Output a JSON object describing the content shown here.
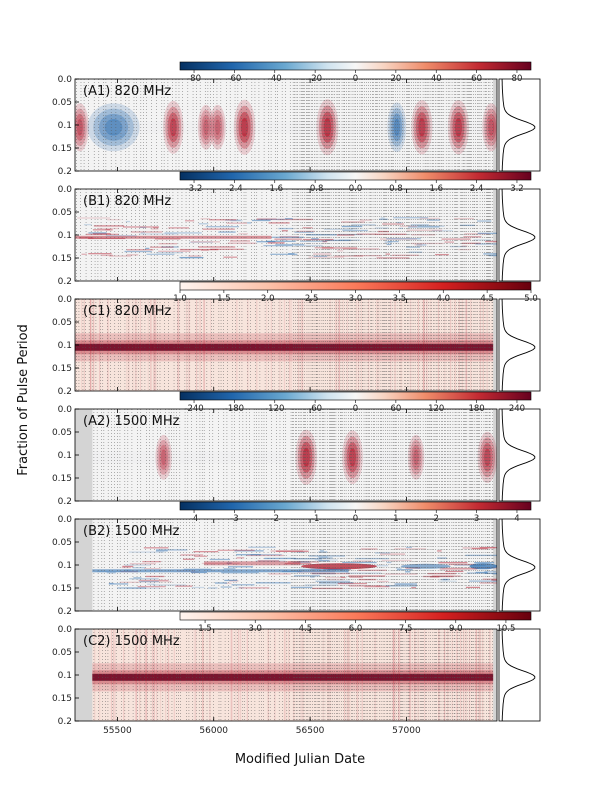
{
  "chart_data": {
    "type": "heatmap",
    "xlabel": "Modified Julian Date",
    "ylabel": "Fraction of Pulse Period",
    "xlim": [
      55280,
      57470
    ],
    "x_ticks": [
      55500,
      56000,
      56500,
      57000
    ],
    "y_ticks": [
      "0.0",
      "0.05",
      "0.1",
      "0.15",
      "0.2"
    ],
    "pulse_phase_peak": 0.105,
    "panels": [
      {
        "label": "(A1) 820 MHz",
        "colormap": "RdBu_r",
        "colorbar_ticks": [
          "-80",
          "-60",
          "-40",
          "-20",
          "0",
          "20",
          "40",
          "60",
          "80"
        ],
        "data_start_mjd": 55280,
        "data_end_mjd": 57450,
        "features": [
          {
            "mjd": 55305,
            "sign": 1,
            "strength": 0.5
          },
          {
            "mjd": 55480,
            "sign": -1,
            "strength": 0.5
          },
          {
            "mjd": 55790,
            "sign": 1,
            "strength": 0.8
          },
          {
            "mjd": 55960,
            "sign": 1,
            "strength": 0.3
          },
          {
            "mjd": 56020,
            "sign": 1,
            "strength": 0.3
          },
          {
            "mjd": 56160,
            "sign": 1,
            "strength": 0.95
          },
          {
            "mjd": 56590,
            "sign": 1,
            "strength": 1.0
          },
          {
            "mjd": 56950,
            "sign": -1,
            "strength": 0.6
          },
          {
            "mjd": 57080,
            "sign": 1,
            "strength": 0.9
          },
          {
            "mjd": 57270,
            "sign": 1,
            "strength": 0.9
          },
          {
            "mjd": 57440,
            "sign": 1,
            "strength": 0.5
          }
        ]
      },
      {
        "label": "(B1) 820 MHz",
        "colormap": "RdBu_r",
        "colorbar_ticks": [
          "-3.2",
          "-2.4",
          "-1.6",
          "-0.8",
          "0.0",
          "0.8",
          "1.6",
          "2.4",
          "3.2"
        ],
        "data_start_mjd": 55280,
        "data_end_mjd": 57450
      },
      {
        "label": "(C1) 820 MHz",
        "colormap": "Reds",
        "colorbar_ticks": [
          "1.0",
          "1.5",
          "2.0",
          "2.5",
          "3.0",
          "3.5",
          "4.0",
          "4.5",
          "5.0"
        ],
        "data_start_mjd": 55280,
        "data_end_mjd": 57450
      },
      {
        "label": "(A2) 1500 MHz",
        "colormap": "RdBu_r",
        "colorbar_ticks": [
          "-240",
          "-180",
          "-120",
          "-60",
          "0",
          "60",
          "120",
          "180",
          "240"
        ],
        "data_start_mjd": 55370,
        "data_end_mjd": 57450,
        "features": [
          {
            "mjd": 55740,
            "sign": 1,
            "strength": 0.3
          },
          {
            "mjd": 56480,
            "sign": 1,
            "strength": 0.95
          },
          {
            "mjd": 56720,
            "sign": 1,
            "strength": 0.85
          },
          {
            "mjd": 57050,
            "sign": 1,
            "strength": 0.3
          },
          {
            "mjd": 57420,
            "sign": 1,
            "strength": 0.7
          }
        ]
      },
      {
        "label": "(B2) 1500 MHz",
        "colormap": "RdBu_r",
        "colorbar_ticks": [
          "-4",
          "-3",
          "-2",
          "-1",
          "0",
          "1",
          "2",
          "3",
          "4"
        ],
        "data_start_mjd": 55370,
        "data_end_mjd": 57450
      },
      {
        "label": "(C2) 1500 MHz",
        "colormap": "Reds",
        "colorbar_ticks": [
          "1.5",
          "3.0",
          "4.5",
          "6.0",
          "7.5",
          "9.0",
          "10.5"
        ],
        "data_start_mjd": 55370,
        "data_end_mjd": 57450
      }
    ]
  }
}
